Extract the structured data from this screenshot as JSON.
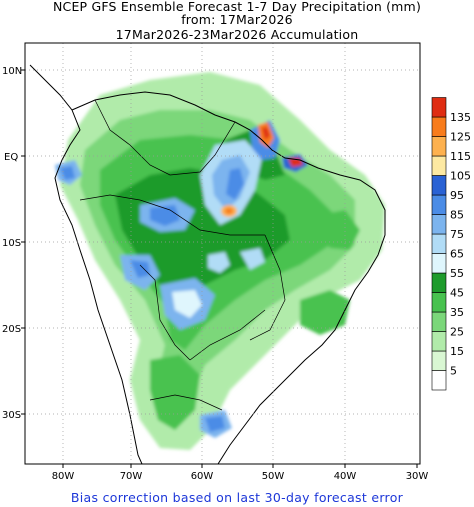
{
  "title": {
    "line1": "NCEP GFS Ensemble Forecast 1-7 Day Precipitation (mm)",
    "line2": "from: 17Mar2026",
    "line3": "17Mar2026-23Mar2026 Accumulation"
  },
  "footer": "Bias correction based on last 30-day forecast error",
  "axes": {
    "lat_ticks": [
      "10N",
      "EQ",
      "10S",
      "20S",
      "30S"
    ],
    "lon_ticks": [
      "80W",
      "70W",
      "60W",
      "50W",
      "40W",
      "30W"
    ]
  },
  "legend": {
    "levels": [
      "5",
      "15",
      "25",
      "35",
      "45",
      "55",
      "65",
      "75",
      "85",
      "95",
      "105",
      "115",
      "125",
      "135"
    ],
    "colors": [
      "#ffffff",
      "#d9f7d3",
      "#b1ebaa",
      "#7bd77a",
      "#48c24f",
      "#1e9b2c",
      "#dff6fd",
      "#b1dcf6",
      "#7cb4ee",
      "#4b8ce6",
      "#2a62d4",
      "#fde9a2",
      "#fdb14f",
      "#f87c1c",
      "#df2d12"
    ]
  },
  "colors": {
    "footer_text": "#1d37d8",
    "coast": "#000000",
    "grid": "#9a9a9a"
  }
}
